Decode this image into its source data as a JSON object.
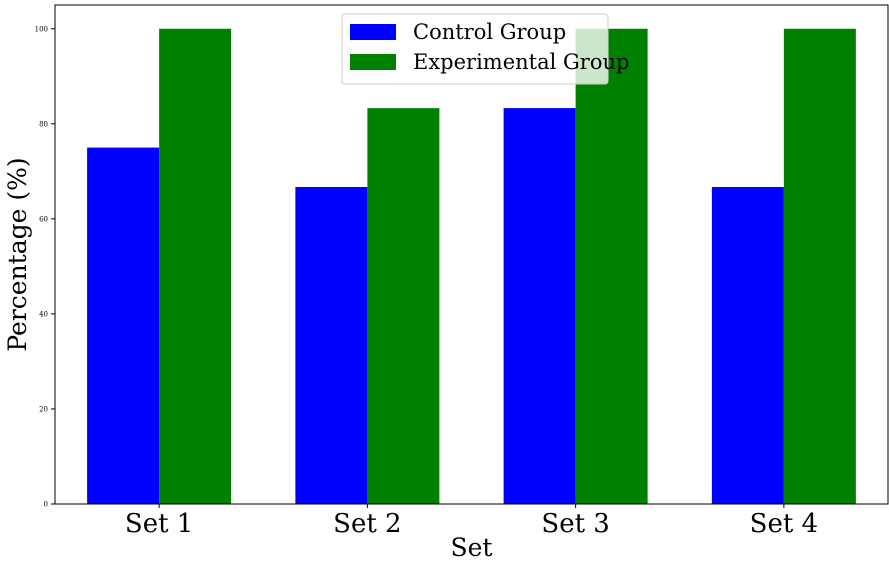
{
  "chart_data": {
    "type": "bar",
    "categories": [
      "Set 1",
      "Set 2",
      "Set 3",
      "Set 4"
    ],
    "series": [
      {
        "name": "Control Group",
        "color": "#0000ff",
        "values": [
          75,
          66.7,
          83.3,
          66.7
        ]
      },
      {
        "name": "Experimental Group",
        "color": "#008000",
        "values": [
          100,
          83.3,
          100,
          100
        ]
      }
    ],
    "xlabel": "Set",
    "ylabel": "Percentage (%)",
    "ylim": [
      0,
      105
    ],
    "yticks": [
      0,
      20,
      40,
      60,
      80,
      100
    ],
    "grid": false,
    "legend_position": "top-center"
  }
}
